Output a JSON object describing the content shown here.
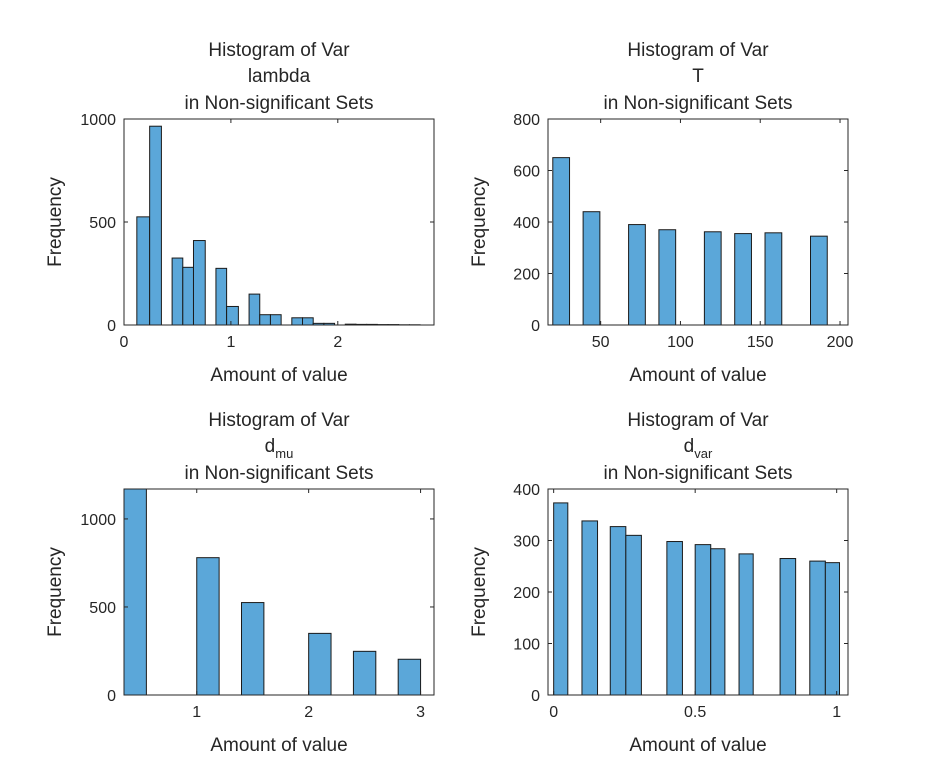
{
  "chart_data": [
    {
      "type": "bar",
      "title": {
        "line1": "Histogram of Var",
        "var_main": "lambda",
        "var_sub": "",
        "line3": "in Non-significant Sets"
      },
      "xlabel": "Amount of value",
      "ylabel": "Frequency",
      "xlim": [
        0,
        2.9
      ],
      "ylim": [
        0,
        1000
      ],
      "xticks": [
        0,
        1,
        2
      ],
      "xtick_labels": [
        "0",
        "1",
        "2"
      ],
      "yticks": [
        0,
        500,
        1000
      ],
      "ytick_labels": [
        "0",
        "500",
        "1000"
      ],
      "bars": [
        {
          "x0": 0.12,
          "x1": 0.24,
          "value": 525
        },
        {
          "x0": 0.24,
          "x1": 0.35,
          "value": 965
        },
        {
          "x0": 0.35,
          "x1": 0.45,
          "value": 0
        },
        {
          "x0": 0.45,
          "x1": 0.55,
          "value": 325
        },
        {
          "x0": 0.55,
          "x1": 0.65,
          "value": 280
        },
        {
          "x0": 0.65,
          "x1": 0.76,
          "value": 410
        },
        {
          "x0": 0.76,
          "x1": 0.86,
          "value": 0
        },
        {
          "x0": 0.86,
          "x1": 0.96,
          "value": 275
        },
        {
          "x0": 0.96,
          "x1": 1.07,
          "value": 90
        },
        {
          "x0": 1.07,
          "x1": 1.17,
          "value": 0
        },
        {
          "x0": 1.17,
          "x1": 1.27,
          "value": 150
        },
        {
          "x0": 1.27,
          "x1": 1.37,
          "value": 50
        },
        {
          "x0": 1.37,
          "x1": 1.47,
          "value": 50
        },
        {
          "x0": 1.47,
          "x1": 1.57,
          "value": 0
        },
        {
          "x0": 1.57,
          "x1": 1.67,
          "value": 35
        },
        {
          "x0": 1.67,
          "x1": 1.77,
          "value": 35
        },
        {
          "x0": 1.77,
          "x1": 1.87,
          "value": 8
        },
        {
          "x0": 1.87,
          "x1": 1.97,
          "value": 8
        },
        {
          "x0": 1.97,
          "x1": 2.07,
          "value": 0
        },
        {
          "x0": 2.07,
          "x1": 2.17,
          "value": 4
        },
        {
          "x0": 2.17,
          "x1": 2.27,
          "value": 3
        },
        {
          "x0": 2.27,
          "x1": 2.37,
          "value": 3
        },
        {
          "x0": 2.37,
          "x1": 2.47,
          "value": 2
        },
        {
          "x0": 2.47,
          "x1": 2.57,
          "value": 2
        },
        {
          "x0": 2.57,
          "x1": 2.67,
          "value": 1
        },
        {
          "x0": 2.67,
          "x1": 2.77,
          "value": 1
        }
      ],
      "grid": false
    },
    {
      "type": "bar",
      "title": {
        "line1": "Histogram of Var",
        "var_main": "T",
        "var_sub": "",
        "line3": "in Non-significant Sets"
      },
      "xlabel": "Amount of value",
      "ylabel": "Frequency",
      "xlim": [
        17,
        205
      ],
      "ylim": [
        0,
        800
      ],
      "xticks": [
        50,
        100,
        150,
        200
      ],
      "xtick_labels": [
        "50",
        "100",
        "150",
        "200"
      ],
      "yticks": [
        0,
        200,
        400,
        600,
        800
      ],
      "ytick_labels": [
        "0",
        "200",
        "400",
        "600",
        "800"
      ],
      "bars": [
        {
          "x0": 20,
          "x1": 30.5,
          "value": 650
        },
        {
          "x0": 39,
          "x1": 49.5,
          "value": 440
        },
        {
          "x0": 67.5,
          "x1": 78,
          "value": 390
        },
        {
          "x0": 86.5,
          "x1": 97,
          "value": 370
        },
        {
          "x0": 115,
          "x1": 125.5,
          "value": 362
        },
        {
          "x0": 134,
          "x1": 144.5,
          "value": 355
        },
        {
          "x0": 153,
          "x1": 163.5,
          "value": 358
        },
        {
          "x0": 181.5,
          "x1": 192,
          "value": 345
        }
      ],
      "grid": false
    },
    {
      "type": "bar",
      "title": {
        "line1": "Histogram of Var",
        "var_main": "d",
        "var_sub": "mu",
        "line3": "in Non-significant Sets"
      },
      "xlabel": "Amount of value",
      "ylabel": "Frequency",
      "xlim": [
        0.35,
        3.12
      ],
      "ylim": [
        0,
        1170
      ],
      "xticks": [
        1,
        2,
        3
      ],
      "xtick_labels": [
        "1",
        "2",
        "3"
      ],
      "yticks": [
        0,
        500,
        1000
      ],
      "ytick_labels": [
        "0",
        "500",
        "1000"
      ],
      "bars": [
        {
          "x0": 0.35,
          "x1": 0.55,
          "value": 1170
        },
        {
          "x0": 1.0,
          "x1": 1.2,
          "value": 780
        },
        {
          "x0": 1.4,
          "x1": 1.6,
          "value": 525
        },
        {
          "x0": 2.0,
          "x1": 2.2,
          "value": 350
        },
        {
          "x0": 2.4,
          "x1": 2.6,
          "value": 248
        },
        {
          "x0": 2.8,
          "x1": 3.0,
          "value": 203
        }
      ],
      "grid": false
    },
    {
      "type": "bar",
      "title": {
        "line1": "Histogram of Var",
        "var_main": "d",
        "var_sub": "var",
        "line3": "in Non-significant Sets"
      },
      "xlabel": "Amount of value",
      "ylabel": "Frequency",
      "xlim": [
        -0.02,
        1.04
      ],
      "ylim": [
        0,
        400
      ],
      "xticks": [
        0,
        0.5,
        1
      ],
      "xtick_labels": [
        "0",
        "0.5",
        "1"
      ],
      "yticks": [
        0,
        100,
        200,
        300,
        400
      ],
      "yticks_labels_note": "",
      "ytick_labels": [
        "0",
        "100",
        "200",
        "300",
        "400"
      ],
      "bars": [
        {
          "x0": 0.0,
          "x1": 0.05,
          "value": 373
        },
        {
          "x0": 0.1,
          "x1": 0.155,
          "value": 338
        },
        {
          "x0": 0.2,
          "x1": 0.255,
          "value": 327
        },
        {
          "x0": 0.255,
          "x1": 0.31,
          "value": 310
        },
        {
          "x0": 0.4,
          "x1": 0.455,
          "value": 298
        },
        {
          "x0": 0.5,
          "x1": 0.555,
          "value": 292
        },
        {
          "x0": 0.555,
          "x1": 0.605,
          "value": 284
        },
        {
          "x0": 0.655,
          "x1": 0.705,
          "value": 274
        },
        {
          "x0": 0.8,
          "x1": 0.855,
          "value": 265
        },
        {
          "x0": 0.905,
          "x1": 0.96,
          "value": 260
        },
        {
          "x0": 0.96,
          "x1": 1.01,
          "value": 257
        }
      ],
      "grid": false
    }
  ]
}
